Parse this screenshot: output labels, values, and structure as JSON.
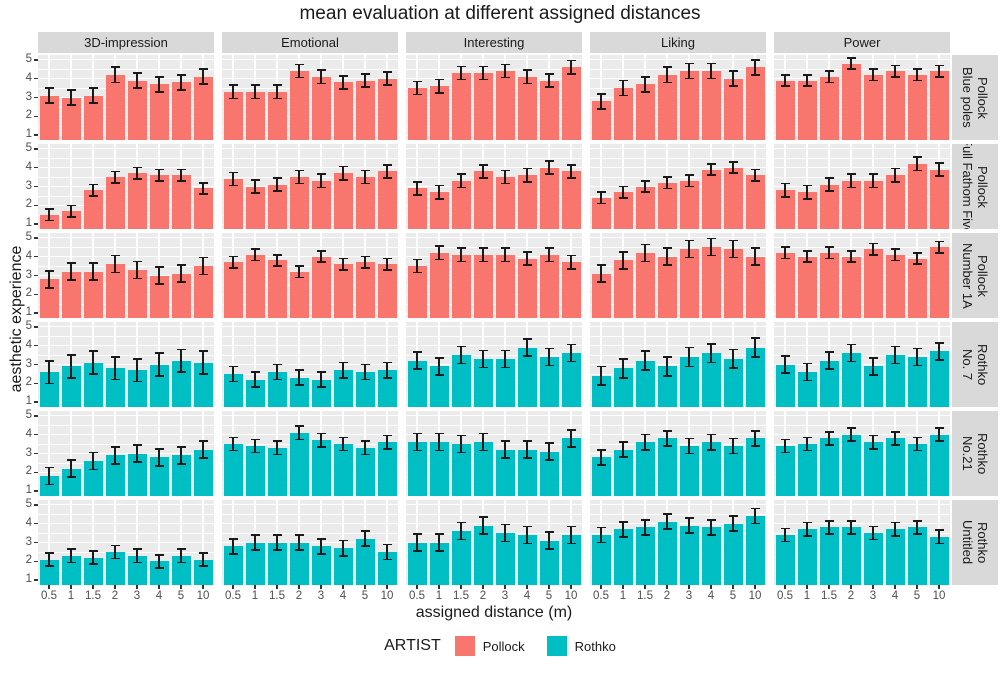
{
  "title": "mean evaluation at different assigned distances",
  "axes": {
    "x_title": "assigned distance (m)",
    "y_title": "aesthetic experience",
    "x_tick_labels": [
      "0.5",
      "1",
      "1.5",
      "2",
      "3",
      "4",
      "5",
      "10"
    ],
    "y_tick_labels": [
      "5",
      "4",
      "3",
      "2",
      "1"
    ]
  },
  "legend": {
    "title": "ARTIST",
    "entries": [
      {
        "label": "Pollock",
        "color": "#F8766D"
      },
      {
        "label": "Rothko",
        "color": "#00BFC4"
      }
    ]
  },
  "style_colors": {
    "panel_background": "#EBEBEB",
    "strip_background": "#D9D9D9",
    "gridline": "#FFFFFF",
    "error_bar": "#1A1A1A",
    "tick_text": "#4D4D4D"
  },
  "chart_data": {
    "type": "bar",
    "facet_columns": [
      "3D-impression",
      "Emotional",
      "Interesting",
      "Liking",
      "Power"
    ],
    "x_categories": [
      0.5,
      1,
      1.5,
      2,
      3,
      4,
      5,
      10
    ],
    "ylim": [
      1,
      5
    ],
    "grid": true,
    "legend_position": "bottom",
    "facet_rows": [
      {
        "artist": "Pollock",
        "painting": "Blue poles",
        "color": "#F8766D",
        "values": [
          [
            3.1,
            3.0,
            3.1,
            4.2,
            3.9,
            3.7,
            3.8,
            4.1
          ],
          [
            3.3,
            3.3,
            3.3,
            4.4,
            4.1,
            3.8,
            3.9,
            4.0
          ],
          [
            3.5,
            3.6,
            4.3,
            4.3,
            4.4,
            4.1,
            3.9,
            4.6
          ],
          [
            2.8,
            3.5,
            3.7,
            4.2,
            4.4,
            4.4,
            4.0,
            4.6
          ],
          [
            3.9,
            3.9,
            4.1,
            4.8,
            4.2,
            4.4,
            4.2,
            4.4
          ]
        ],
        "err": [
          0.4,
          0.35,
          0.35,
          0.4,
          0.3
        ]
      },
      {
        "artist": "Pollock",
        "painting": "Full Fathom Five",
        "color": "#F8766D",
        "values": [
          [
            1.5,
            1.7,
            2.8,
            3.5,
            3.7,
            3.6,
            3.6,
            2.9
          ],
          [
            3.4,
            3.0,
            3.1,
            3.5,
            3.3,
            3.7,
            3.5,
            3.8
          ],
          [
            2.9,
            2.7,
            3.3,
            3.8,
            3.5,
            3.6,
            4.0,
            3.8
          ],
          [
            2.4,
            2.7,
            3.0,
            3.2,
            3.3,
            3.9,
            4.0,
            3.6
          ],
          [
            2.8,
            2.7,
            3.1,
            3.3,
            3.3,
            3.6,
            4.2,
            3.9
          ]
        ],
        "err": [
          0.3,
          0.35,
          0.35,
          0.3,
          0.35
        ]
      },
      {
        "artist": "Pollock",
        "painting": "Number 1A",
        "color": "#F8766D",
        "values": [
          [
            2.8,
            3.2,
            3.2,
            3.6,
            3.3,
            3.0,
            3.1,
            3.5
          ],
          [
            3.7,
            4.1,
            3.8,
            3.2,
            4.0,
            3.6,
            3.7,
            3.6
          ],
          [
            3.5,
            4.2,
            4.1,
            4.1,
            4.1,
            3.9,
            4.1,
            3.7
          ],
          [
            3.1,
            3.8,
            4.2,
            4.0,
            4.4,
            4.5,
            4.4,
            4.0
          ],
          [
            4.2,
            4.0,
            4.2,
            4.0,
            4.4,
            4.1,
            3.9,
            4.5
          ]
        ],
        "err": [
          0.45,
          0.3,
          0.35,
          0.45,
          0.3
        ]
      },
      {
        "artist": "Rothko",
        "painting": "No. 7",
        "color": "#00BFC4",
        "values": [
          [
            2.6,
            2.9,
            3.1,
            2.8,
            2.7,
            3.0,
            3.2,
            3.1
          ],
          [
            2.5,
            2.2,
            2.6,
            2.3,
            2.2,
            2.7,
            2.6,
            2.7
          ],
          [
            3.2,
            2.9,
            3.5,
            3.3,
            3.3,
            3.9,
            3.4,
            3.6
          ],
          [
            2.4,
            2.8,
            3.2,
            2.9,
            3.4,
            3.6,
            3.3,
            3.9
          ],
          [
            3.0,
            2.6,
            3.2,
            3.6,
            2.9,
            3.5,
            3.4,
            3.7
          ]
        ],
        "err": [
          0.6,
          0.4,
          0.45,
          0.5,
          0.45
        ]
      },
      {
        "artist": "Rothko",
        "painting": "No.21",
        "color": "#00BFC4",
        "values": [
          [
            1.8,
            2.2,
            2.6,
            2.9,
            3.0,
            2.8,
            2.9,
            3.2
          ],
          [
            3.5,
            3.4,
            3.3,
            4.1,
            3.7,
            3.5,
            3.3,
            3.6
          ],
          [
            3.6,
            3.6,
            3.5,
            3.6,
            3.2,
            3.2,
            3.1,
            3.8
          ],
          [
            2.8,
            3.2,
            3.6,
            3.8,
            3.4,
            3.6,
            3.4,
            3.8
          ],
          [
            3.4,
            3.5,
            3.8,
            4.0,
            3.6,
            3.8,
            3.5,
            4.0
          ]
        ],
        "err": [
          0.45,
          0.35,
          0.45,
          0.4,
          0.35
        ]
      },
      {
        "artist": "Rothko",
        "painting": "Untitled",
        "color": "#00BFC4",
        "values": [
          [
            2.1,
            2.3,
            2.2,
            2.5,
            2.3,
            2.0,
            2.3,
            2.1
          ],
          [
            2.8,
            3.0,
            3.0,
            3.0,
            2.8,
            2.7,
            3.2,
            2.5
          ],
          [
            3.0,
            3.0,
            3.6,
            3.9,
            3.5,
            3.4,
            3.1,
            3.4
          ],
          [
            3.4,
            3.7,
            3.8,
            4.1,
            3.9,
            3.8,
            4.0,
            4.4
          ],
          [
            3.4,
            3.7,
            3.8,
            3.8,
            3.5,
            3.7,
            3.8,
            3.3
          ]
        ],
        "err": [
          0.35,
          0.4,
          0.45,
          0.4,
          0.35
        ]
      }
    ]
  }
}
